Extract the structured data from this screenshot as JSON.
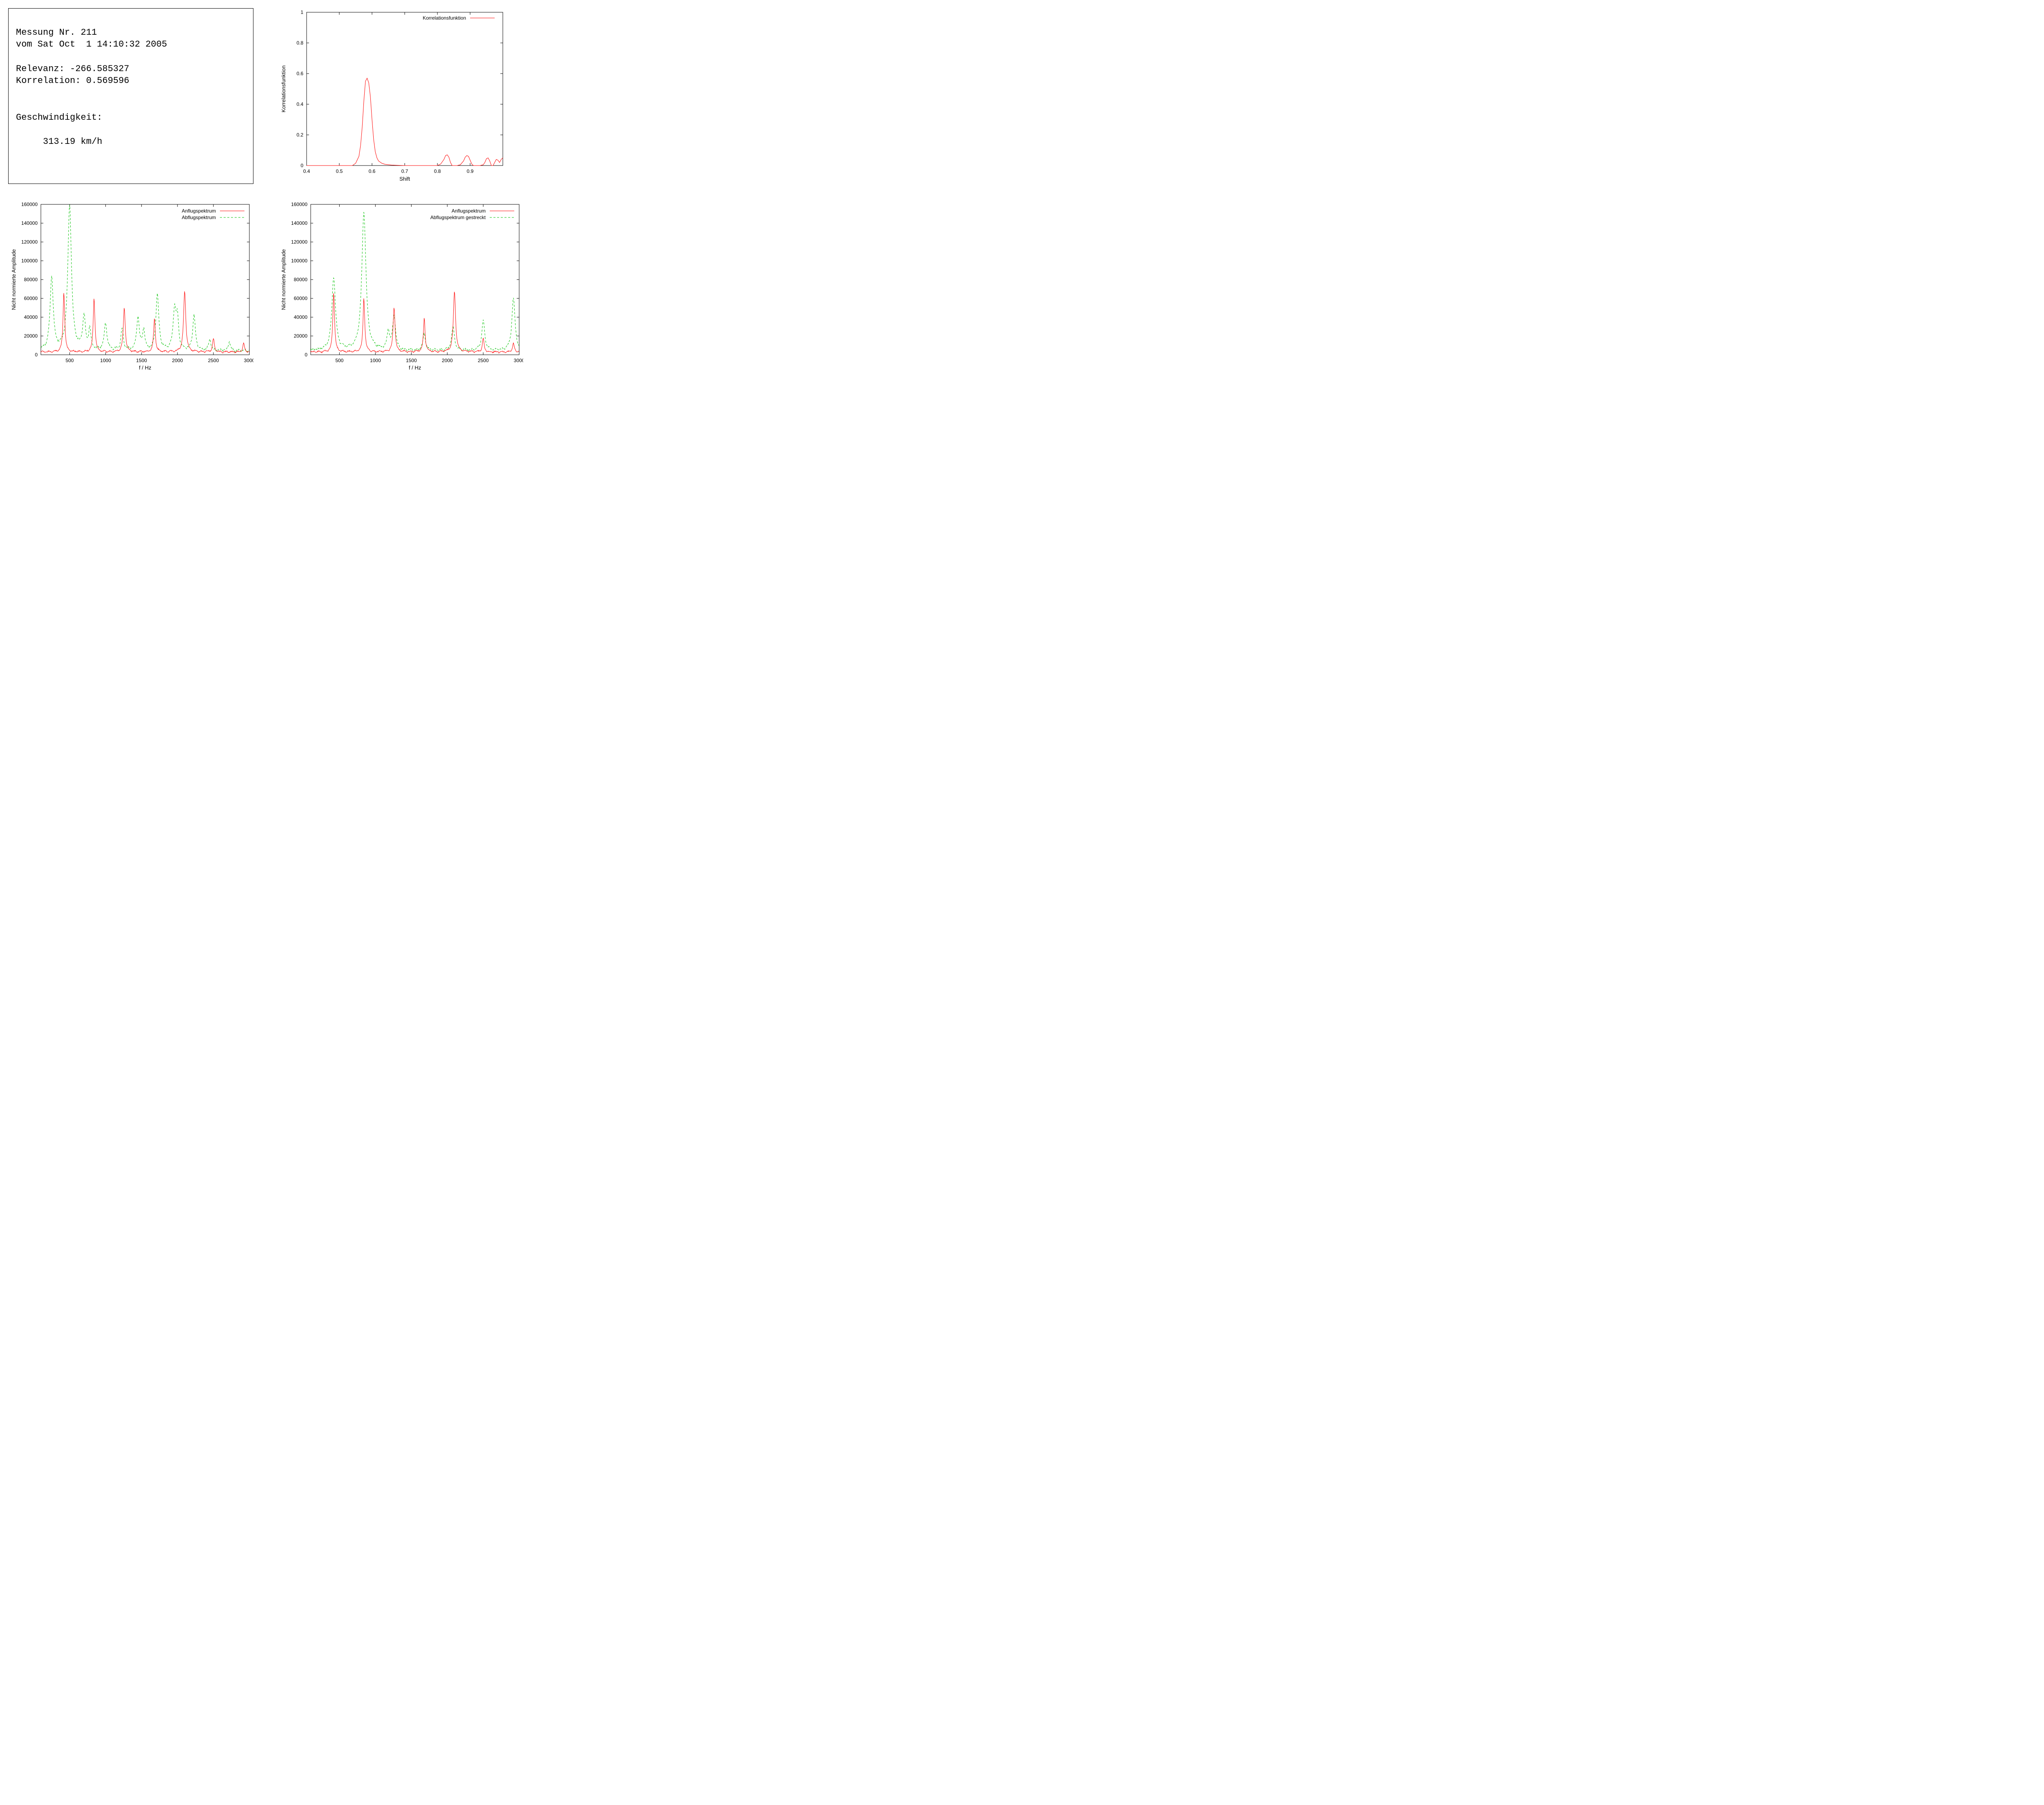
{
  "info": {
    "title_line1": "Messung Nr. 211",
    "title_line2": "vom Sat Oct  1 14:10:32 2005",
    "relevanz_label": "Relevanz: ",
    "relevanz_value": "-266.585327",
    "korrelation_label": "Korrelation: ",
    "korrelation_value": "0.569596",
    "speed_label": "Geschwindigkeit:",
    "speed_value": "313.19 km/h"
  },
  "chart_corr": {
    "type": "line",
    "xlabel": "Shift",
    "ylabel": "Korrelationsfunktion",
    "legend": "Korrelationsfunktion",
    "xlim": [
      0.4,
      1.0
    ],
    "ylim": [
      0,
      1.0
    ],
    "xticks": [
      0.4,
      0.5,
      0.6,
      0.7,
      0.8,
      0.9
    ],
    "yticks": [
      0,
      0.2,
      0.4,
      0.6,
      0.8,
      1.0
    ],
    "line_color": "#ff0000",
    "grid_color": "#000000",
    "background_color": "#ffffff",
    "series": [
      [
        0.4,
        0.0
      ],
      [
        0.5,
        0.0
      ],
      [
        0.54,
        0.0
      ],
      [
        0.55,
        0.015
      ],
      [
        0.56,
        0.06
      ],
      [
        0.565,
        0.13
      ],
      [
        0.57,
        0.25
      ],
      [
        0.575,
        0.42
      ],
      [
        0.58,
        0.55
      ],
      [
        0.585,
        0.57
      ],
      [
        0.59,
        0.54
      ],
      [
        0.595,
        0.45
      ],
      [
        0.6,
        0.3
      ],
      [
        0.605,
        0.17
      ],
      [
        0.61,
        0.09
      ],
      [
        0.615,
        0.05
      ],
      [
        0.62,
        0.03
      ],
      [
        0.63,
        0.015
      ],
      [
        0.64,
        0.008
      ],
      [
        0.66,
        0.003
      ],
      [
        0.7,
        0.0
      ],
      [
        0.78,
        0.0
      ],
      [
        0.8,
        0.0
      ],
      [
        0.81,
        0.01
      ],
      [
        0.82,
        0.04
      ],
      [
        0.825,
        0.065
      ],
      [
        0.83,
        0.07
      ],
      [
        0.835,
        0.055
      ],
      [
        0.84,
        0.02
      ],
      [
        0.845,
        0.0
      ],
      [
        0.86,
        0.0
      ],
      [
        0.87,
        0.005
      ],
      [
        0.88,
        0.03
      ],
      [
        0.885,
        0.055
      ],
      [
        0.89,
        0.065
      ],
      [
        0.895,
        0.06
      ],
      [
        0.9,
        0.035
      ],
      [
        0.905,
        0.01
      ],
      [
        0.91,
        0.0
      ],
      [
        0.93,
        0.0
      ],
      [
        0.94,
        0.005
      ],
      [
        0.945,
        0.02
      ],
      [
        0.95,
        0.045
      ],
      [
        0.955,
        0.05
      ],
      [
        0.96,
        0.03
      ],
      [
        0.965,
        0.0
      ],
      [
        0.97,
        0.0
      ],
      [
        0.975,
        0.02
      ],
      [
        0.98,
        0.04
      ],
      [
        0.985,
        0.035
      ],
      [
        0.99,
        0.02
      ],
      [
        0.995,
        0.04
      ],
      [
        1.0,
        0.05
      ]
    ]
  },
  "chart_spec_left": {
    "type": "line",
    "xlabel": "f / Hz",
    "ylabel": "Nicht normierte Amplitude",
    "xlim": [
      100,
      3000
    ],
    "ylim": [
      0,
      160000
    ],
    "xticks": [
      500,
      1000,
      1500,
      2000,
      2500,
      3000
    ],
    "yticks": [
      0,
      20000,
      40000,
      60000,
      80000,
      100000,
      120000,
      140000,
      160000
    ],
    "legend": [
      {
        "label": "Anflugspektrum",
        "color": "#ff0000",
        "dash": "solid"
      },
      {
        "label": "Abflugspektrum",
        "color": "#00c000",
        "dash": "dashed"
      }
    ],
    "background_color": "#ffffff",
    "grid_color": "#000000",
    "red_peaks": [
      {
        "f": 420,
        "a": 64000,
        "w": 14
      },
      {
        "f": 840,
        "a": 58000,
        "w": 14
      },
      {
        "f": 1260,
        "a": 47000,
        "w": 16
      },
      {
        "f": 1680,
        "a": 36000,
        "w": 14
      },
      {
        "f": 2100,
        "a": 65000,
        "w": 18
      },
      {
        "f": 2500,
        "a": 14000,
        "w": 14
      },
      {
        "f": 2920,
        "a": 9000,
        "w": 14
      }
    ],
    "green_peaks": [
      {
        "f": 250,
        "a": 78000,
        "w": 26
      },
      {
        "f": 500,
        "a": 155000,
        "w": 30
      },
      {
        "f": 700,
        "a": 36000,
        "w": 22
      },
      {
        "f": 780,
        "a": 22000,
        "w": 18
      },
      {
        "f": 1000,
        "a": 29000,
        "w": 22
      },
      {
        "f": 1230,
        "a": 23000,
        "w": 20
      },
      {
        "f": 1450,
        "a": 35000,
        "w": 22
      },
      {
        "f": 1530,
        "a": 22000,
        "w": 18
      },
      {
        "f": 1720,
        "a": 60000,
        "w": 24
      },
      {
        "f": 1960,
        "a": 44000,
        "w": 24
      },
      {
        "f": 2000,
        "a": 30000,
        "w": 20
      },
      {
        "f": 2230,
        "a": 37000,
        "w": 22
      },
      {
        "f": 2450,
        "a": 12000,
        "w": 18
      },
      {
        "f": 2720,
        "a": 10000,
        "w": 16
      }
    ],
    "baseline_noise": 3500
  },
  "chart_spec_right": {
    "type": "line",
    "xlabel": "f / Hz",
    "ylabel": "Nicht normierte Amplitude",
    "xlim": [
      100,
      3000
    ],
    "ylim": [
      0,
      160000
    ],
    "xticks": [
      500,
      1000,
      1500,
      2000,
      2500,
      3000
    ],
    "yticks": [
      0,
      20000,
      40000,
      60000,
      80000,
      100000,
      120000,
      140000,
      160000
    ],
    "legend": [
      {
        "label": "Anflugspektrum",
        "color": "#ff0000",
        "dash": "solid"
      },
      {
        "label": "Abflugspektrum gestreckt",
        "color": "#00c000",
        "dash": "dashed"
      }
    ],
    "background_color": "#ffffff",
    "grid_color": "#000000",
    "red_peaks": [
      {
        "f": 420,
        "a": 64000,
        "w": 14
      },
      {
        "f": 840,
        "a": 58000,
        "w": 14
      },
      {
        "f": 1260,
        "a": 47000,
        "w": 16
      },
      {
        "f": 1680,
        "a": 36000,
        "w": 14
      },
      {
        "f": 2100,
        "a": 65000,
        "w": 18
      },
      {
        "f": 2500,
        "a": 14000,
        "w": 14
      },
      {
        "f": 2920,
        "a": 9000,
        "w": 14
      }
    ],
    "green_peaks": [
      {
        "f": 420,
        "a": 78000,
        "w": 30
      },
      {
        "f": 840,
        "a": 148000,
        "w": 34
      },
      {
        "f": 1180,
        "a": 20000,
        "w": 20
      },
      {
        "f": 1260,
        "a": 36000,
        "w": 24
      },
      {
        "f": 1680,
        "a": 18000,
        "w": 22
      },
      {
        "f": 2080,
        "a": 25000,
        "w": 24
      },
      {
        "f": 2500,
        "a": 32000,
        "w": 24
      },
      {
        "f": 2920,
        "a": 56000,
        "w": 26
      }
    ],
    "baseline_noise": 3500
  },
  "style": {
    "font_mono": "Courier New",
    "font_sans": "Arial",
    "tick_len": 6,
    "axis_color": "#000000"
  }
}
